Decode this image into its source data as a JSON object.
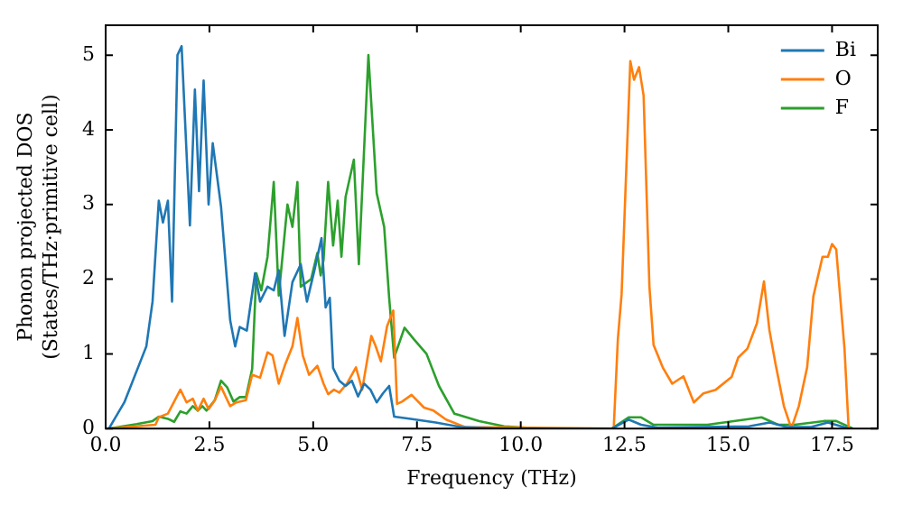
{
  "chart_data": {
    "type": "line",
    "xlabel": "Frequency (THz)",
    "ylabel": "Phonon projected DOS\n(States/THz·primitive cell)",
    "xlim": [
      0,
      18.6
    ],
    "xticks": [
      {
        "value": 0,
        "label": "0.0"
      },
      {
        "value": 2.5,
        "label": "2.5"
      },
      {
        "value": 5,
        "label": "5.0"
      },
      {
        "value": 7.5,
        "label": "7.5"
      },
      {
        "value": 10,
        "label": "10.0"
      },
      {
        "value": 12.5,
        "label": "12.5"
      },
      {
        "value": 15,
        "label": "15.0"
      },
      {
        "value": 17.5,
        "label": "17.5"
      }
    ],
    "ylim": [
      0,
      5.4
    ],
    "yticks": [
      0,
      1,
      2,
      3,
      4,
      5
    ],
    "grid": false,
    "legend": "top right",
    "marker": "none",
    "line_style": "solid",
    "series": [
      {
        "name": "Bi",
        "color": "#1f77b4",
        "x": [
          0.08,
          0.45,
          0.98,
          1.13,
          1.28,
          1.38,
          1.5,
          1.6,
          1.73,
          1.83,
          2.03,
          2.15,
          2.25,
          2.36,
          2.48,
          2.58,
          2.78,
          3.0,
          3.12,
          3.23,
          3.4,
          3.6,
          3.72,
          3.9,
          4.05,
          4.17,
          4.31,
          4.5,
          4.7,
          4.85,
          5.03,
          5.2,
          5.3,
          5.4,
          5.48,
          5.63,
          5.78,
          5.93,
          6.08,
          6.23,
          6.38,
          6.53,
          6.68,
          6.83,
          6.95,
          7.35,
          7.95,
          8.55,
          9.5,
          12.2,
          12.6,
          12.9,
          13.3,
          15.5,
          16.0,
          16.4,
          17.0,
          17.4,
          17.9
        ],
        "values": [
          0,
          0.35,
          1.1,
          1.7,
          3.05,
          2.76,
          3.05,
          1.7,
          5.0,
          5.12,
          2.72,
          4.54,
          3.18,
          4.66,
          3.0,
          3.82,
          2.97,
          1.45,
          1.1,
          1.36,
          1.31,
          2.08,
          1.7,
          1.9,
          1.85,
          2.12,
          1.24,
          1.96,
          2.2,
          1.7,
          2.12,
          2.55,
          1.62,
          1.75,
          0.81,
          0.64,
          0.57,
          0.64,
          0.43,
          0.6,
          0.52,
          0.35,
          0.47,
          0.57,
          0.16,
          0.13,
          0.08,
          0.02,
          0,
          0,
          0.12,
          0.05,
          0.01,
          0.03,
          0.08,
          0.02,
          0.02,
          0.08,
          0
        ]
      },
      {
        "name": "O",
        "color": "#ff7f0e",
        "x": [
          0.08,
          1.2,
          1.28,
          1.5,
          1.8,
          1.95,
          2.1,
          2.22,
          2.36,
          2.48,
          2.63,
          2.78,
          3.0,
          3.15,
          3.38,
          3.53,
          3.72,
          3.9,
          4.02,
          4.17,
          4.32,
          4.5,
          4.62,
          4.75,
          4.9,
          5.1,
          5.25,
          5.36,
          5.5,
          5.63,
          5.81,
          6.03,
          6.18,
          6.4,
          6.5,
          6.63,
          6.78,
          6.93,
          7.02,
          7.14,
          7.37,
          7.67,
          7.9,
          8.2,
          8.65,
          12.24,
          12.34,
          12.43,
          12.64,
          12.73,
          12.85,
          12.96,
          13.1,
          13.2,
          13.42,
          13.65,
          13.92,
          14.17,
          14.4,
          14.7,
          15.08,
          15.24,
          15.46,
          15.69,
          15.86,
          15.99,
          16.14,
          16.34,
          16.52,
          16.7,
          16.9,
          17.05,
          17.27,
          17.4,
          17.5,
          17.6,
          17.8,
          17.9
        ],
        "values": [
          0,
          0.05,
          0.15,
          0.2,
          0.52,
          0.35,
          0.4,
          0.24,
          0.4,
          0.26,
          0.38,
          0.56,
          0.3,
          0.35,
          0.38,
          0.72,
          0.68,
          1.02,
          0.98,
          0.6,
          0.85,
          1.1,
          1.48,
          0.98,
          0.72,
          0.84,
          0.6,
          0.46,
          0.52,
          0.48,
          0.6,
          0.82,
          0.52,
          1.24,
          1.11,
          0.9,
          1.37,
          1.58,
          0.33,
          0.36,
          0.45,
          0.28,
          0.24,
          0.12,
          0.02,
          0,
          1.2,
          1.8,
          4.92,
          4.67,
          4.84,
          4.46,
          1.9,
          1.12,
          0.82,
          0.6,
          0.7,
          0.35,
          0.47,
          0.52,
          0.69,
          0.95,
          1.07,
          1.41,
          1.97,
          1.32,
          0.86,
          0.3,
          0,
          0.3,
          0.82,
          1.77,
          2.3,
          2.3,
          2.47,
          2.4,
          1.07,
          0
        ]
      },
      {
        "name": "F",
        "color": "#2ca02c",
        "x": [
          0.08,
          0.75,
          1.13,
          1.28,
          1.5,
          1.65,
          1.8,
          1.95,
          2.1,
          2.22,
          2.33,
          2.43,
          2.63,
          2.78,
          2.93,
          3.08,
          3.23,
          3.38,
          3.53,
          3.63,
          3.75,
          3.9,
          4.05,
          4.17,
          4.38,
          4.5,
          4.62,
          4.7,
          4.95,
          5.1,
          5.18,
          5.25,
          5.36,
          5.48,
          5.59,
          5.68,
          5.78,
          5.98,
          6.1,
          6.33,
          6.53,
          6.71,
          6.83,
          6.95,
          7.2,
          7.42,
          7.73,
          8.03,
          8.4,
          9.0,
          9.6,
          10.5,
          12.2,
          12.6,
          12.9,
          13.2,
          14.5,
          15.8,
          16.2,
          16.6,
          17.3,
          17.6,
          18.0
        ],
        "values": [
          0,
          0.06,
          0.1,
          0.16,
          0.13,
          0.09,
          0.23,
          0.2,
          0.3,
          0.24,
          0.3,
          0.24,
          0.38,
          0.64,
          0.55,
          0.36,
          0.42,
          0.42,
          0.8,
          2.08,
          1.85,
          2.3,
          3.3,
          1.78,
          3.0,
          2.7,
          3.3,
          1.9,
          2.0,
          2.35,
          2.05,
          2.26,
          3.3,
          2.45,
          3.05,
          2.3,
          3.1,
          3.6,
          2.2,
          5.0,
          3.15,
          2.7,
          1.75,
          0.95,
          1.35,
          1.2,
          1.0,
          0.57,
          0.2,
          0.1,
          0.03,
          0,
          0,
          0.15,
          0.15,
          0.05,
          0.05,
          0.15,
          0.05,
          0.05,
          0.1,
          0.1,
          0
        ]
      }
    ]
  }
}
